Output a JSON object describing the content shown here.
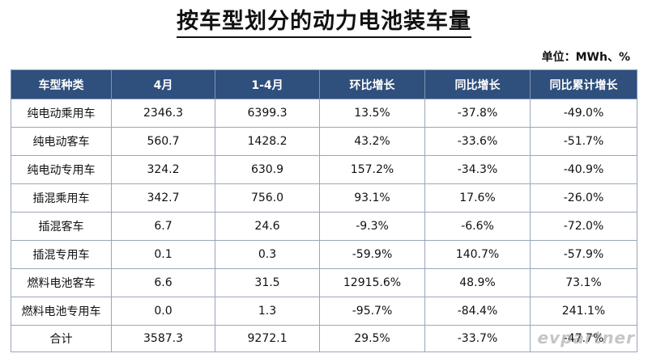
{
  "title": "按车型划分的动力电池装车量",
  "unit": "单位：MWh、%",
  "table": {
    "headers": [
      "车型种类",
      "4月",
      "1-4月",
      "环比增长",
      "同比增长",
      "同比累计增长"
    ],
    "rows": [
      [
        "纯电动乘用车",
        "2346.3",
        "6399.3",
        "13.5%",
        "-37.8%",
        "-49.0%"
      ],
      [
        "纯电动客车",
        "560.7",
        "1428.2",
        "43.2%",
        "-33.6%",
        "-51.7%"
      ],
      [
        "纯电动专用车",
        "324.2",
        "630.9",
        "157.2%",
        "-34.3%",
        "-40.9%"
      ],
      [
        "插混乘用车",
        "342.7",
        "756.0",
        "93.1%",
        "17.6%",
        "-26.0%"
      ],
      [
        "插混客车",
        "6.7",
        "24.6",
        "-9.3%",
        "-6.6%",
        "-72.0%"
      ],
      [
        "插混专用车",
        "0.1",
        "0.3",
        "-59.9%",
        "140.7%",
        "-57.9%"
      ],
      [
        "燃料电池客车",
        "6.6",
        "31.5",
        "12915.6%",
        "48.9%",
        "73.1%"
      ],
      [
        "燃料电池专用车",
        "0.0",
        "1.3",
        "-95.7%",
        "-84.4%",
        "241.1%"
      ],
      [
        "合计",
        "3587.3",
        "9272.1",
        "29.5%",
        "-33.7%",
        "-47.7%"
      ]
    ]
  },
  "watermark": "evpartner",
  "colors": {
    "header_bg": "#2f4f7d",
    "header_text": "#ffffff",
    "border": "#9aa7ba"
  }
}
